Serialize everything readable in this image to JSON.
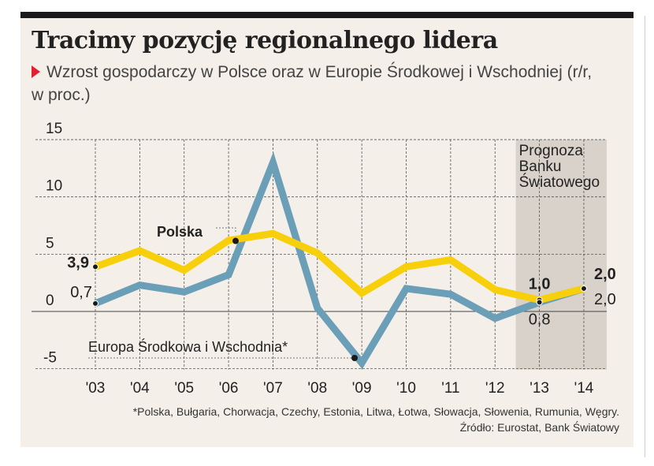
{
  "title": "Tracimy pozycję regionalnego lidera",
  "subtitle": "Wzrost gospodarczy w Polsce oraz w Europie Środkowej i Wschodniej (r/r, w proc.)",
  "footnote": "*Polska, Bułgaria, Chorwacja, Czechy, Estonia, Litwa, Łotwa, Słowacja, Słowenia, Rumunia, Węgry.",
  "source": "Źródło: Eurostat, Bank Światowy",
  "chart_data": {
    "type": "line",
    "categories": [
      "'03",
      "'04",
      "'05",
      "'06",
      "'07",
      "'08",
      "'09",
      "'10",
      "'11",
      "'12",
      "'13",
      "'14"
    ],
    "ylim": [
      -5,
      15
    ],
    "yticks": [
      15,
      10,
      5,
      0,
      -5
    ],
    "grid": true,
    "forecast_region": {
      "label": "Prognoza Banku Światowego",
      "from": "'13",
      "to": "'14"
    },
    "series": [
      {
        "name": "Polska",
        "color": "#f7cf0a",
        "values": [
          3.9,
          5.3,
          3.6,
          6.2,
          6.8,
          5.1,
          1.6,
          3.9,
          4.5,
          1.9,
          1.0,
          2.0
        ],
        "labels": {
          "start": "3,9",
          "forecast_1": "1,0",
          "forecast_2": "2,0"
        }
      },
      {
        "name": "Europa Środkowa i Wschodnia*",
        "color": "#6b9fb8",
        "values": [
          0.7,
          2.3,
          1.7,
          3.2,
          13.0,
          0.3,
          -4.5,
          2.0,
          1.5,
          -0.6,
          0.8,
          2.0
        ],
        "labels": {
          "start": "0,7",
          "forecast_1": "0,8",
          "forecast_2": "2,0"
        }
      }
    ]
  }
}
